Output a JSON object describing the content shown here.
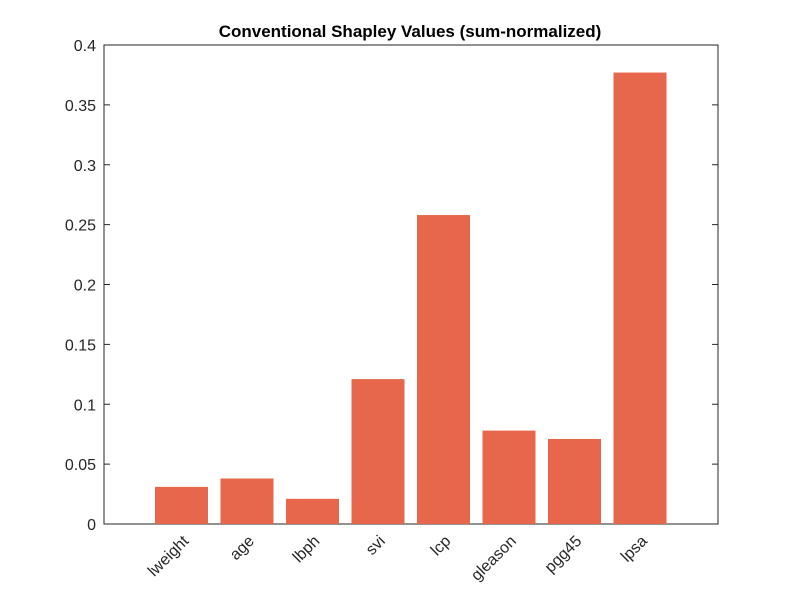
{
  "chart_data": {
    "type": "bar",
    "title": "Conventional Shapley Values (sum-normalized)",
    "xlabel": "",
    "ylabel": "",
    "categories": [
      "lweight",
      "age",
      "lbph",
      "svi",
      "lcp",
      "gleason",
      "pgg45",
      "lpsa"
    ],
    "values": [
      0.031,
      0.038,
      0.021,
      0.121,
      0.258,
      0.078,
      0.071,
      0.377
    ],
    "ylim": [
      0,
      0.4
    ],
    "yticks": [
      "0",
      "0.05",
      "0.1",
      "0.15",
      "0.2",
      "0.25",
      "0.3",
      "0.35",
      "0.4"
    ],
    "ytick_values": [
      0,
      0.05,
      0.1,
      0.15,
      0.2,
      0.25,
      0.3,
      0.35,
      0.4
    ],
    "grid": false,
    "bar_color": "#E6674B"
  }
}
